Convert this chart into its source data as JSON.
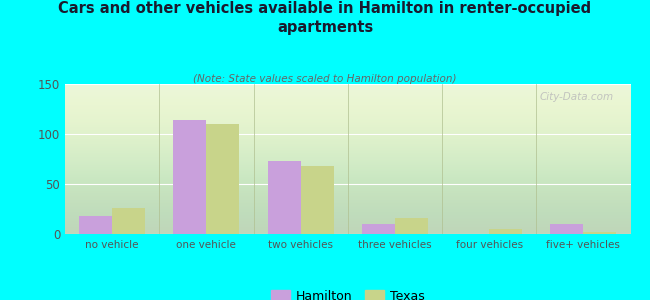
{
  "title": "Cars and other vehicles available in Hamilton in renter-occupied\napartments",
  "subtitle": "(Note: State values scaled to Hamilton population)",
  "categories": [
    "no vehicle",
    "one vehicle",
    "two vehicles",
    "three vehicles",
    "four vehicles",
    "five+ vehicles"
  ],
  "hamilton_values": [
    18,
    114,
    73,
    10,
    0,
    10
  ],
  "texas_values": [
    26,
    110,
    68,
    16,
    5,
    2
  ],
  "hamilton_color": "#c9a0dc",
  "texas_color": "#c8d48a",
  "background_color": "#00FFFF",
  "ylim": [
    0,
    150
  ],
  "yticks": [
    0,
    50,
    100,
    150
  ],
  "title_color": "#1a1a2e",
  "subtitle_color": "#666666",
  "watermark": "City-Data.com",
  "legend_hamilton": "Hamilton",
  "legend_texas": "Texas",
  "bar_width": 0.35
}
